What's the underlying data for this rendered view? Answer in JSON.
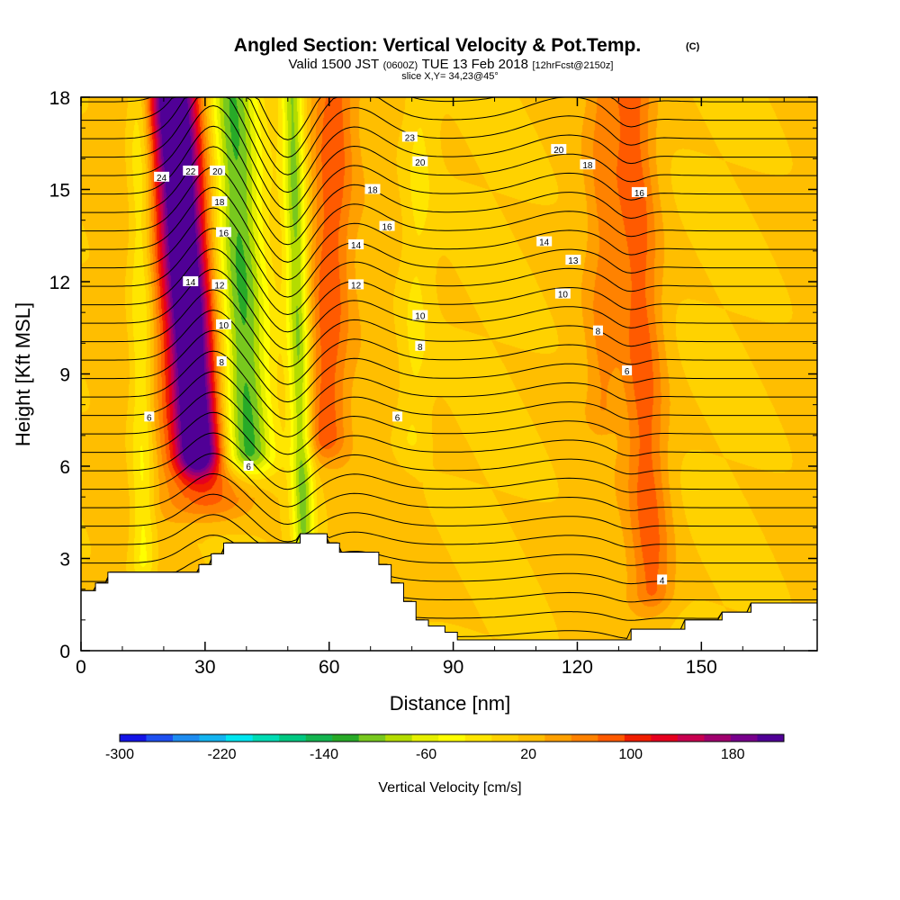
{
  "chart_data": {
    "type": "heatmap",
    "title": "Angled Section: Vertical Velocity & Pot.Temp.",
    "title_mark": "(C)",
    "subtitle_prefix": "Valid 1500 JST",
    "subtitle_utc": "(0600Z)",
    "subtitle_date": "TUE 13 Feb 2018",
    "subtitle_run": "[12hrFcst@2150z]",
    "slice_label": "slice X,Y= 34,23@45°",
    "xlabel": "Distance [nm]",
    "ylabel": "Height [Kft MSL]",
    "xlim": [
      0,
      178
    ],
    "ylim": [
      0,
      18
    ],
    "x_ticks": [
      0,
      30,
      60,
      90,
      120,
      150
    ],
    "x_tick_labels": [
      "0",
      "30",
      "60",
      "90",
      "120",
      "150"
    ],
    "y_ticks": [
      0,
      3,
      6,
      9,
      12,
      15,
      18
    ],
    "y_tick_labels": [
      "0",
      "3",
      "6",
      "9",
      "12",
      "15",
      "18"
    ],
    "colorbar": {
      "label": "Vertical Velocity [cm/s]",
      "range": [
        -300,
        220
      ],
      "tick_values": [
        -300,
        -220,
        -140,
        -60,
        20,
        100,
        180
      ],
      "tick_labels": [
        "-300",
        "-220",
        "-140",
        "-60",
        "20",
        "100",
        "180"
      ],
      "colors": [
        "#1414e6",
        "#1e50f0",
        "#1e8cf0",
        "#14b4f0",
        "#00e6f0",
        "#00dcb4",
        "#00c882",
        "#14b450",
        "#28aa28",
        "#78c81e",
        "#b4dc00",
        "#e6f000",
        "#ffff00",
        "#ffe600",
        "#ffd200",
        "#ffbe00",
        "#ffa000",
        "#ff8200",
        "#ff5a00",
        "#f01e00",
        "#e6001e",
        "#c80050",
        "#a0006e",
        "#78008c",
        "#500096"
      ]
    },
    "velocity_features": [
      {
        "kind": "updraft",
        "peak": 200,
        "x_at_top": 22,
        "x_at_base": 28,
        "base_height": 6.5,
        "width": 5
      },
      {
        "kind": "updraft",
        "peak": 70,
        "x_at_top": 26,
        "x_at_base": 30,
        "base_height": 5,
        "width": 11
      },
      {
        "kind": "downdraft",
        "peak": -150,
        "x_at_top": 36,
        "x_at_base": 40,
        "base_height": 6.5,
        "width": 6
      },
      {
        "kind": "downdraft",
        "peak": -110,
        "x_at_top": 51,
        "x_at_base": 54,
        "base_height": 2.5,
        "width": 2.6
      },
      {
        "kind": "updraft",
        "peak": 70,
        "x_at_top": 61,
        "x_at_base": 59,
        "base_height": 7,
        "width": 5
      },
      {
        "kind": "updraft",
        "peak": 65,
        "x_at_top": 133,
        "x_at_base": 138,
        "base_height": 2,
        "width": 5
      },
      {
        "kind": "updraft",
        "peak": 35,
        "x_at_top": 126,
        "x_at_base": 126,
        "base_height": 8,
        "width": 4
      },
      {
        "kind": "downdraft",
        "peak": -60,
        "x_at_top": 14,
        "x_at_base": 15,
        "base_height": 3,
        "width": 3
      },
      {
        "kind": "downdraft",
        "peak": -30,
        "x_at_top": 82,
        "x_at_base": 80,
        "base_height": 7,
        "width": 4
      }
    ],
    "theta_contour_labels": [
      {
        "text": "24",
        "x": 19.5,
        "y": 15.4
      },
      {
        "text": "22",
        "x": 26.5,
        "y": 15.6
      },
      {
        "text": "20",
        "x": 33.0,
        "y": 15.6
      },
      {
        "text": "18",
        "x": 33.5,
        "y": 14.6
      },
      {
        "text": "16",
        "x": 34.5,
        "y": 13.6
      },
      {
        "text": "14",
        "x": 26.5,
        "y": 12.0
      },
      {
        "text": "12",
        "x": 33.5,
        "y": 11.9
      },
      {
        "text": "10",
        "x": 34.5,
        "y": 10.6
      },
      {
        "text": "8",
        "x": 34.0,
        "y": 9.4
      },
      {
        "text": "6",
        "x": 16.5,
        "y": 7.6
      },
      {
        "text": "6",
        "x": 40.5,
        "y": 6.0
      },
      {
        "text": "23",
        "x": 79.5,
        "y": 16.7
      },
      {
        "text": "20",
        "x": 82.0,
        "y": 15.9
      },
      {
        "text": "18",
        "x": 70.5,
        "y": 15.0
      },
      {
        "text": "16",
        "x": 74.0,
        "y": 13.8
      },
      {
        "text": "14",
        "x": 66.5,
        "y": 13.2
      },
      {
        "text": "12",
        "x": 66.5,
        "y": 11.9
      },
      {
        "text": "10",
        "x": 82.0,
        "y": 10.9
      },
      {
        "text": "8",
        "x": 82.0,
        "y": 9.9
      },
      {
        "text": "6",
        "x": 76.5,
        "y": 7.6
      },
      {
        "text": "20",
        "x": 115.5,
        "y": 16.3
      },
      {
        "text": "18",
        "x": 122.5,
        "y": 15.8
      },
      {
        "text": "16",
        "x": 135.0,
        "y": 14.9
      },
      {
        "text": "14",
        "x": 112.0,
        "y": 13.3
      },
      {
        "text": "13",
        "x": 119.0,
        "y": 12.7
      },
      {
        "text": "10",
        "x": 116.5,
        "y": 11.6
      },
      {
        "text": "8",
        "x": 125.0,
        "y": 10.4
      },
      {
        "text": "6",
        "x": 132.0,
        "y": 9.1
      },
      {
        "text": "4",
        "x": 140.5,
        "y": 2.3
      }
    ],
    "terrain_kft": [
      [
        0,
        1.95
      ],
      [
        3.5,
        1.95
      ],
      [
        3.5,
        2.2
      ],
      [
        6.5,
        2.2
      ],
      [
        6.5,
        2.55
      ],
      [
        28.5,
        2.55
      ],
      [
        28.5,
        2.8
      ],
      [
        31.5,
        2.8
      ],
      [
        31.5,
        3.15
      ],
      [
        34.5,
        3.15
      ],
      [
        34.5,
        3.5
      ],
      [
        53,
        3.5
      ],
      [
        53,
        3.8
      ],
      [
        59.5,
        3.8
      ],
      [
        59.5,
        3.5
      ],
      [
        62.5,
        3.5
      ],
      [
        62.5,
        3.2
      ],
      [
        72,
        3.2
      ],
      [
        72,
        2.8
      ],
      [
        75,
        2.8
      ],
      [
        75,
        2.2
      ],
      [
        78,
        2.2
      ],
      [
        78,
        1.6
      ],
      [
        81,
        1.6
      ],
      [
        81,
        1.0
      ],
      [
        84,
        1.0
      ],
      [
        84,
        0.8
      ],
      [
        88,
        0.8
      ],
      [
        88,
        0.6
      ],
      [
        91,
        0.6
      ],
      [
        91,
        0.35
      ],
      [
        133,
        0.35
      ],
      [
        133,
        0.7
      ],
      [
        146,
        0.7
      ],
      [
        146,
        1.0
      ],
      [
        155,
        1.0
      ],
      [
        155,
        1.25
      ],
      [
        162,
        1.25
      ],
      [
        162,
        1.55
      ],
      [
        178,
        1.55
      ]
    ]
  }
}
